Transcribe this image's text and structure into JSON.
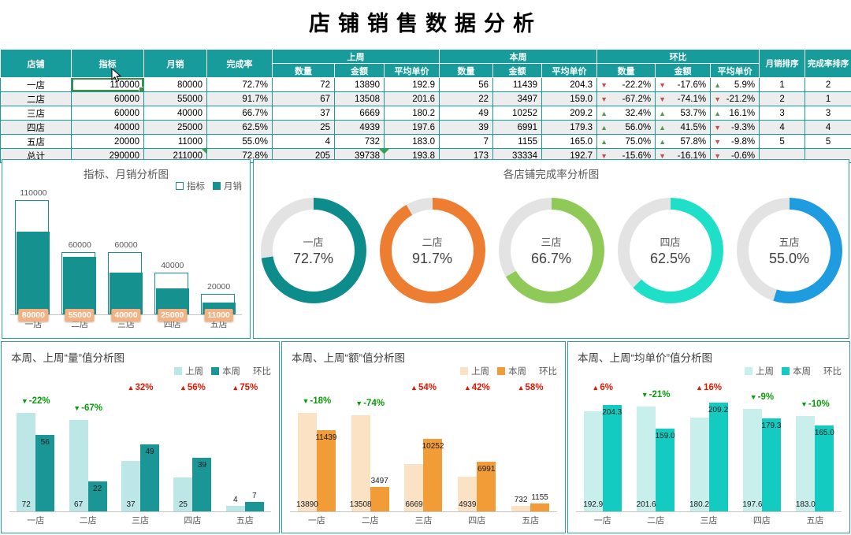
{
  "title": "店铺销售数据分析",
  "cursor": {
    "visible": true
  },
  "colors": {
    "table_header_bg": "#189B9B",
    "table_border": "#189B9B",
    "row_alt_bg": "#EDEDED",
    "table_up_arrow": "#4F9E4F",
    "table_down_arrow": "#C0504D",
    "selection_border": "#3E8F43",
    "panel_border": "#2BA39C",
    "wow_up_text": "#E81600",
    "wow_down_text": "#0A9B0A"
  },
  "table": {
    "headers": {
      "store": "店铺",
      "target": "指标",
      "monthly": "月销",
      "rate": "完成率",
      "lastweek": "上周",
      "thisweek": "本周",
      "wow": "环比",
      "qty": "数量",
      "amount": "金额",
      "avg_price": "平均单价",
      "monthly_rank": "月销排序",
      "rate_rank": "完成率排序"
    },
    "corner_marks": [
      {
        "row": 5,
        "col": "monthly",
        "pos": "tr"
      },
      {
        "row": 5,
        "col": "lw_amt",
        "pos": "tr"
      },
      {
        "row": 5,
        "col": "lw_avg",
        "pos": "tl"
      }
    ],
    "rows": [
      {
        "store": "一店",
        "target": "110000",
        "monthly": "80000",
        "rate": "72.7%",
        "lw_qty": "72",
        "lw_amt": "13890",
        "lw_avg": "192.9",
        "tw_qty": "56",
        "tw_amt": "11439",
        "tw_avg": "204.3",
        "wow_qty": {
          "dir": "down",
          "val": "-22.2%"
        },
        "wow_amt": {
          "dir": "down",
          "val": "-17.6%"
        },
        "wow_avg": {
          "dir": "up",
          "val": "5.9%"
        },
        "m_rank": "1",
        "r_rank": "2",
        "selected_target": true
      },
      {
        "store": "二店",
        "target": "60000",
        "monthly": "55000",
        "rate": "91.7%",
        "lw_qty": "67",
        "lw_amt": "13508",
        "lw_avg": "201.6",
        "tw_qty": "22",
        "tw_amt": "3497",
        "tw_avg": "159.0",
        "wow_qty": {
          "dir": "down",
          "val": "-67.2%"
        },
        "wow_amt": {
          "dir": "down",
          "val": "-74.1%"
        },
        "wow_avg": {
          "dir": "down",
          "val": "-21.2%"
        },
        "m_rank": "2",
        "r_rank": "1"
      },
      {
        "store": "三店",
        "target": "60000",
        "monthly": "40000",
        "rate": "66.7%",
        "lw_qty": "37",
        "lw_amt": "6669",
        "lw_avg": "180.2",
        "tw_qty": "49",
        "tw_amt": "10252",
        "tw_avg": "209.2",
        "wow_qty": {
          "dir": "up",
          "val": "32.4%"
        },
        "wow_amt": {
          "dir": "up",
          "val": "53.7%"
        },
        "wow_avg": {
          "dir": "up",
          "val": "16.1%"
        },
        "m_rank": "3",
        "r_rank": "3"
      },
      {
        "store": "四店",
        "target": "40000",
        "monthly": "25000",
        "rate": "62.5%",
        "lw_qty": "25",
        "lw_amt": "4939",
        "lw_avg": "197.6",
        "tw_qty": "39",
        "tw_amt": "6991",
        "tw_avg": "179.3",
        "wow_qty": {
          "dir": "up",
          "val": "56.0%"
        },
        "wow_amt": {
          "dir": "up",
          "val": "41.5%"
        },
        "wow_avg": {
          "dir": "down",
          "val": "-9.3%"
        },
        "m_rank": "4",
        "r_rank": "4"
      },
      {
        "store": "五店",
        "target": "20000",
        "monthly": "11000",
        "rate": "55.0%",
        "lw_qty": "4",
        "lw_amt": "732",
        "lw_avg": "183.0",
        "tw_qty": "7",
        "tw_amt": "1155",
        "tw_avg": "165.0",
        "wow_qty": {
          "dir": "up",
          "val": "75.0%"
        },
        "wow_amt": {
          "dir": "up",
          "val": "57.8%"
        },
        "wow_avg": {
          "dir": "down",
          "val": "-9.8%"
        },
        "m_rank": "5",
        "r_rank": "5"
      },
      {
        "store": "总计",
        "target": "290000",
        "monthly": "211000",
        "rate": "72.8%",
        "lw_qty": "205",
        "lw_amt": "39738",
        "lw_avg": "193.8",
        "tw_qty": "173",
        "tw_amt": "33334",
        "tw_avg": "192.7",
        "wow_qty": {
          "dir": "down",
          "val": "-15.6%"
        },
        "wow_amt": {
          "dir": "down",
          "val": "-16.1%"
        },
        "wow_avg": {
          "dir": "down",
          "val": "-0.6%"
        },
        "m_rank": "",
        "r_rank": ""
      }
    ]
  },
  "chart_data": [
    {
      "id": "target_vs_monthly",
      "type": "bar",
      "title": "指标、月销分析图",
      "legend": [
        "指标",
        "月销"
      ],
      "categories": [
        "一店",
        "二店",
        "三店",
        "四店",
        "五店"
      ],
      "series": [
        {
          "name": "指标",
          "values": [
            110000,
            60000,
            60000,
            40000,
            20000
          ],
          "labels": [
            "110000",
            "60000",
            "60000",
            "40000",
            "20000"
          ]
        },
        {
          "name": "月销",
          "values": [
            80000,
            55000,
            40000,
            25000,
            11000
          ],
          "labels": [
            "80000",
            "55000",
            "40000",
            "25000",
            "11000"
          ]
        }
      ],
      "ylim": [
        0,
        110000
      ],
      "legend_position": "top-right",
      "colors": {
        "target_outline": "#15918F",
        "monthly_fill": "#15918F",
        "badge_bg": "#F4B183",
        "badge_text": "#FFFFFF"
      }
    },
    {
      "id": "completion_rate",
      "type": "donut",
      "title": "各店铺完成率分析图",
      "categories": [
        "一店",
        "二店",
        "三店",
        "四店",
        "五店"
      ],
      "values": [
        72.7,
        91.7,
        66.7,
        62.5,
        55.0
      ],
      "labels": [
        "72.7%",
        "91.7%",
        "66.7%",
        "62.5%",
        "55.0%"
      ],
      "colors": [
        "#0E8C8C",
        "#ED7D31",
        "#8FC958",
        "#1EDFC8",
        "#1F9BE0"
      ],
      "track_color": "#E3E3E3"
    },
    {
      "id": "weekly_qty",
      "type": "bar",
      "title": "本周、上周“量”值分析图",
      "legend": [
        "上周",
        "本周",
        "环比"
      ],
      "categories": [
        "一店",
        "二店",
        "三店",
        "四店",
        "五店"
      ],
      "series": [
        {
          "name": "上周",
          "values": [
            72,
            67,
            37,
            25,
            4
          ],
          "labels": [
            "72",
            "67",
            "37",
            "25",
            "4"
          ]
        },
        {
          "name": "本周",
          "values": [
            56,
            22,
            49,
            39,
            7
          ],
          "labels": [
            "56",
            "22",
            "49",
            "39",
            "7"
          ]
        }
      ],
      "wow": [
        {
          "dir": "down",
          "label": "-22%"
        },
        {
          "dir": "down",
          "label": "-67%"
        },
        {
          "dir": "up",
          "label": "32%"
        },
        {
          "dir": "up",
          "label": "56%"
        },
        {
          "dir": "up",
          "label": "75%"
        }
      ],
      "ylim": [
        0,
        80
      ],
      "legend_position": "top-right",
      "colors": {
        "light": "#BDE6E7",
        "dark": "#1B9697"
      }
    },
    {
      "id": "weekly_amount",
      "type": "bar",
      "title": "本周、上周“额”值分析图",
      "legend": [
        "上周",
        "本周",
        "环比"
      ],
      "categories": [
        "一店",
        "二店",
        "三店",
        "四店",
        "五店"
      ],
      "series": [
        {
          "name": "上周",
          "values": [
            13890,
            13508,
            6669,
            4939,
            732
          ],
          "labels": [
            "13890",
            "13508",
            "6669",
            "4939",
            "732"
          ]
        },
        {
          "name": "本周",
          "values": [
            11439,
            3497,
            10252,
            6991,
            1155
          ],
          "labels": [
            "11439",
            "3497",
            "10252",
            "6991",
            "1155"
          ]
        }
      ],
      "wow": [
        {
          "dir": "down",
          "label": "-18%"
        },
        {
          "dir": "down",
          "label": "-74%"
        },
        {
          "dir": "up",
          "label": "54%"
        },
        {
          "dir": "up",
          "label": "42%"
        },
        {
          "dir": "up",
          "label": "58%"
        }
      ],
      "ylim": [
        0,
        15000
      ],
      "legend_position": "top-right",
      "colors": {
        "light": "#FBE2C5",
        "dark": "#F29C38"
      }
    },
    {
      "id": "weekly_avg_price",
      "type": "bar",
      "title": "本周、上周“均单价”值分析图",
      "legend": [
        "上周",
        "本周",
        "环比"
      ],
      "categories": [
        "一店",
        "二店",
        "三店",
        "四店",
        "五店"
      ],
      "series": [
        {
          "name": "上周",
          "values": [
            192.9,
            201.6,
            180.2,
            197.6,
            183.0
          ],
          "labels": [
            "192.9",
            "201.6",
            "180.2",
            "197.6",
            "183.0"
          ]
        },
        {
          "name": "本周",
          "values": [
            204.3,
            159.0,
            209.2,
            179.3,
            165.0
          ],
          "labels": [
            "204.3",
            "159.0",
            "209.2",
            "179.3",
            "165.0"
          ]
        }
      ],
      "wow": [
        {
          "dir": "up",
          "label": "6%"
        },
        {
          "dir": "down",
          "label": "-21%"
        },
        {
          "dir": "up",
          "label": "16%"
        },
        {
          "dir": "down",
          "label": "-9%"
        },
        {
          "dir": "down",
          "label": "-10%"
        }
      ],
      "ylim": [
        0,
        220
      ],
      "legend_position": "top-right",
      "colors": {
        "light": "#C9EFEC",
        "dark": "#14CBC1"
      }
    }
  ]
}
